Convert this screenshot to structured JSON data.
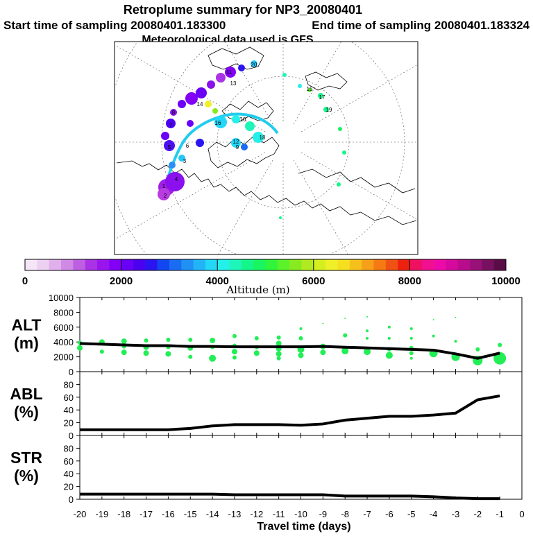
{
  "header": {
    "title": "Retroplume summary for NP3_20080401",
    "start": "Start time of sampling 20080401.183300",
    "end": "End time of sampling 20080401.183324",
    "met": "Meteorological data used is GFS"
  },
  "colorbar": {
    "label": "Altitude (m)",
    "tick_labels": [
      "0",
      "2000",
      "4000",
      "6000",
      "8000",
      "10000"
    ],
    "range": [
      0,
      10000
    ],
    "colors": [
      "#f5e6f7",
      "#ecd0f2",
      "#e0b0ec",
      "#d189e6",
      "#be5fe2",
      "#aa33e6",
      "#9a14ee",
      "#8200f5",
      "#6a00f5",
      "#4c00f0",
      "#2a14f0",
      "#1246f0",
      "#1a6cf2",
      "#2090f5",
      "#23b4f7",
      "#24d6f7",
      "#24f0ea",
      "#1ef5b8",
      "#14f58a",
      "#18f560",
      "#30f53a",
      "#5cf22a",
      "#88ea20",
      "#b0ea20",
      "#d4ee20",
      "#f0f028",
      "#f5e020",
      "#f5c01c",
      "#f5a018",
      "#f57a14",
      "#f05214",
      "#ee2010",
      "#f01060",
      "#f01090",
      "#ee0aa8",
      "#d6099e",
      "#b80c8c",
      "#981078",
      "#781060",
      "#5a0c48"
    ]
  },
  "map": {
    "point_labels": [
      "20",
      "16",
      "12",
      "8",
      "4",
      "2",
      "19",
      "15",
      "11",
      "7",
      "3",
      "18",
      "14",
      "10",
      "6",
      "1",
      "17",
      "13",
      "9",
      "5"
    ]
  },
  "chart_data": [
    {
      "type": "scatter",
      "name": "ALT",
      "ylabel": "ALT\n(m)",
      "ylabel_lines": [
        "ALT",
        "(m)"
      ],
      "ylim": [
        0,
        10000
      ],
      "yticks": [
        0,
        2000,
        4000,
        6000,
        8000,
        10000
      ],
      "x": [
        -20,
        -19,
        -18,
        -17,
        -16,
        -15,
        -14,
        -13,
        -12,
        -11,
        -10,
        -9,
        -8,
        -7,
        -6,
        -5,
        -4,
        -3,
        -2,
        -1
      ],
      "mean_line": [
        3800,
        3700,
        3600,
        3500,
        3500,
        3400,
        3400,
        3350,
        3350,
        3350,
        3350,
        3400,
        3300,
        3200,
        3100,
        3000,
        2900,
        2400,
        1800,
        2500
      ],
      "points": [
        {
          "x": -20,
          "y": 3900,
          "r": 3
        },
        {
          "x": -20,
          "y": 3200,
          "r": 4
        },
        {
          "x": -19,
          "y": 4000,
          "r": 4
        },
        {
          "x": -19,
          "y": 2700,
          "r": 3
        },
        {
          "x": -18,
          "y": 4100,
          "r": 4
        },
        {
          "x": -18,
          "y": 3400,
          "r": 3
        },
        {
          "x": -18,
          "y": 2600,
          "r": 4
        },
        {
          "x": -17,
          "y": 4200,
          "r": 3
        },
        {
          "x": -17,
          "y": 3300,
          "r": 4
        },
        {
          "x": -17,
          "y": 2500,
          "r": 4
        },
        {
          "x": -16,
          "y": 4300,
          "r": 3
        },
        {
          "x": -16,
          "y": 3300,
          "r": 3
        },
        {
          "x": -16,
          "y": 2400,
          "r": 4
        },
        {
          "x": -15,
          "y": 4300,
          "r": 3
        },
        {
          "x": -15,
          "y": 3200,
          "r": 4
        },
        {
          "x": -15,
          "y": 2000,
          "r": 3
        },
        {
          "x": -14,
          "y": 4200,
          "r": 4
        },
        {
          "x": -14,
          "y": 3300,
          "r": 3
        },
        {
          "x": -14,
          "y": 1800,
          "r": 5
        },
        {
          "x": -13,
          "y": 4800,
          "r": 3
        },
        {
          "x": -13,
          "y": 3500,
          "r": 3
        },
        {
          "x": -13,
          "y": 2700,
          "r": 4
        },
        {
          "x": -13,
          "y": 1900,
          "r": 3
        },
        {
          "x": -12,
          "y": 4500,
          "r": 3
        },
        {
          "x": -12,
          "y": 3300,
          "r": 3
        },
        {
          "x": -12,
          "y": 2500,
          "r": 4
        },
        {
          "x": -11,
          "y": 4600,
          "r": 3
        },
        {
          "x": -11,
          "y": 3800,
          "r": 4
        },
        {
          "x": -11,
          "y": 3100,
          "r": 4
        },
        {
          "x": -11,
          "y": 2400,
          "r": 4
        },
        {
          "x": -11,
          "y": 1800,
          "r": 3
        },
        {
          "x": -10,
          "y": 5800,
          "r": 2
        },
        {
          "x": -10,
          "y": 4500,
          "r": 3
        },
        {
          "x": -10,
          "y": 3000,
          "r": 5
        },
        {
          "x": -10,
          "y": 2200,
          "r": 4
        },
        {
          "x": -9,
          "y": 6500,
          "r": 1
        },
        {
          "x": -9,
          "y": 3400,
          "r": 4
        },
        {
          "x": -9,
          "y": 2600,
          "r": 4
        },
        {
          "x": -8,
          "y": 7200,
          "r": 1
        },
        {
          "x": -8,
          "y": 4900,
          "r": 3
        },
        {
          "x": -8,
          "y": 2800,
          "r": 5
        },
        {
          "x": -7,
          "y": 7400,
          "r": 1
        },
        {
          "x": -7,
          "y": 5500,
          "r": 2
        },
        {
          "x": -7,
          "y": 4500,
          "r": 2
        },
        {
          "x": -7,
          "y": 2700,
          "r": 5
        },
        {
          "x": -6,
          "y": 6000,
          "r": 2
        },
        {
          "x": -6,
          "y": 4500,
          "r": 2
        },
        {
          "x": -6,
          "y": 3000,
          "r": 3
        },
        {
          "x": -6,
          "y": 2200,
          "r": 5
        },
        {
          "x": -5,
          "y": 5800,
          "r": 2
        },
        {
          "x": -5,
          "y": 4500,
          "r": 2
        },
        {
          "x": -5,
          "y": 3200,
          "r": 3
        },
        {
          "x": -5,
          "y": 2500,
          "r": 3
        },
        {
          "x": -5,
          "y": 1800,
          "r": 2
        },
        {
          "x": -4,
          "y": 7000,
          "r": 1
        },
        {
          "x": -4,
          "y": 4800,
          "r": 2
        },
        {
          "x": -4,
          "y": 2500,
          "r": 6
        },
        {
          "x": -3,
          "y": 7300,
          "r": 1
        },
        {
          "x": -3,
          "y": 4100,
          "r": 2
        },
        {
          "x": -3,
          "y": 2000,
          "r": 6
        },
        {
          "x": -2,
          "y": 3000,
          "r": 3
        },
        {
          "x": -2,
          "y": 1500,
          "r": 7
        },
        {
          "x": -1,
          "y": 3600,
          "r": 3
        },
        {
          "x": -1,
          "y": 1800,
          "r": 9
        }
      ]
    },
    {
      "type": "line",
      "name": "ABL",
      "ylabel_lines": [
        "ABL",
        "(%)"
      ],
      "ylim": [
        0,
        100
      ],
      "yticks": [
        0,
        20,
        40,
        60,
        80
      ],
      "x": [
        -20,
        -19,
        -18,
        -17,
        -16,
        -15,
        -14,
        -13,
        -12,
        -11,
        -10,
        -9,
        -8,
        -7,
        -6,
        -5,
        -4,
        -3,
        -2,
        -1
      ],
      "values": [
        9,
        9,
        9,
        9,
        9,
        11,
        15,
        17,
        17,
        17,
        16,
        18,
        24,
        27,
        30,
        30,
        32,
        35,
        56,
        62
      ]
    },
    {
      "type": "line",
      "name": "STR",
      "ylabel_lines": [
        "STR",
        "(%)"
      ],
      "ylim": [
        0,
        100
      ],
      "yticks": [
        0,
        20,
        40,
        60,
        80
      ],
      "x": [
        -20,
        -19,
        -18,
        -17,
        -16,
        -15,
        -14,
        -13,
        -12,
        -11,
        -10,
        -9,
        -8,
        -7,
        -6,
        -5,
        -4,
        -3,
        -2,
        -1
      ],
      "values": [
        8,
        8,
        8,
        8,
        8,
        8,
        8,
        7,
        7,
        7,
        7,
        7,
        5,
        5,
        5,
        5,
        4,
        2,
        1,
        1
      ]
    }
  ],
  "xaxis": {
    "label": "Travel time (days)",
    "ticks": [
      -20,
      -19,
      -18,
      -17,
      -16,
      -15,
      -14,
      -13,
      -12,
      -11,
      -10,
      -9,
      -8,
      -7,
      -6,
      -5,
      -4,
      -3,
      -2,
      -1,
      0
    ],
    "tick_labels": [
      "-20",
      "-19",
      "-18",
      "-17",
      "-16",
      "-15",
      "-14",
      "-13",
      "-12",
      "-11",
      "-10",
      "-9",
      "-8",
      "-7",
      "-6",
      "-5",
      "-4",
      "-3",
      "-2",
      "-1",
      "0"
    ]
  },
  "colors": {
    "points": "#22ee55",
    "line": "#000000",
    "track": "#22ccee"
  }
}
